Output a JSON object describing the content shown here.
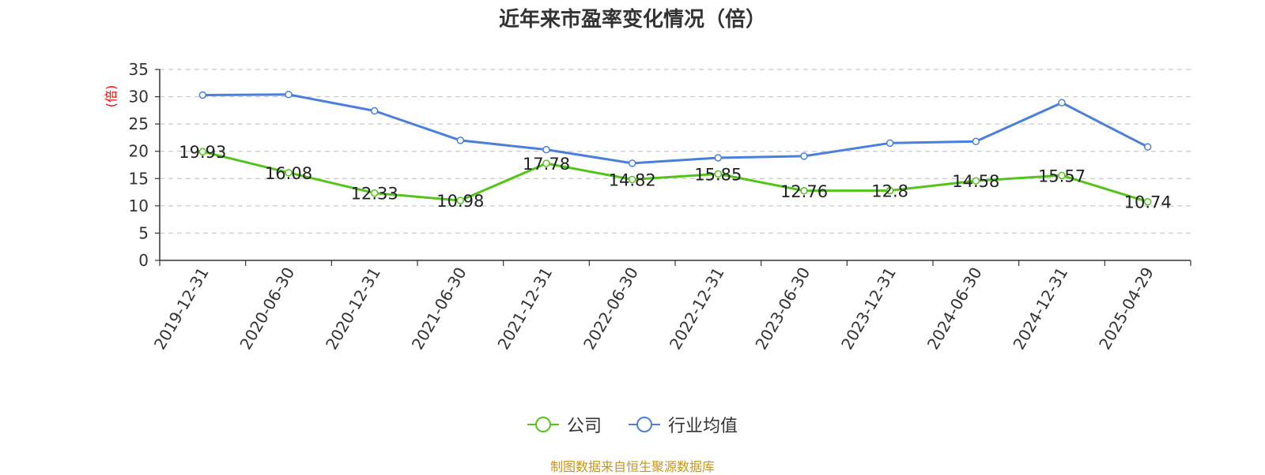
{
  "source_note": "制图数据来自恒生聚源数据库",
  "colors": {
    "company": "#52c41a",
    "industry": "#4a7fdb",
    "ylabel": "#ff0000",
    "source": "#c8951b"
  },
  "chart_data": {
    "type": "line",
    "title": "近年来市盈率变化情况（倍）",
    "xlabel": "",
    "ylabel": "(倍)",
    "ylim": [
      0,
      35
    ],
    "yticks": [
      0,
      5,
      10,
      15,
      20,
      25,
      30,
      35
    ],
    "grid": true,
    "legend_position": "bottom",
    "categories": [
      "2019-12-31",
      "2020-06-30",
      "2020-12-31",
      "2021-06-30",
      "2021-12-31",
      "2022-06-30",
      "2022-12-31",
      "2023-06-30",
      "2023-12-31",
      "2024-06-30",
      "2024-12-31",
      "2025-04-29"
    ],
    "series": [
      {
        "name": "公司",
        "values": [
          19.93,
          16.08,
          12.33,
          10.98,
          17.78,
          14.82,
          15.85,
          12.76,
          12.8,
          14.58,
          15.57,
          10.74
        ],
        "labels": [
          "19.93",
          "16.08",
          "12.33",
          "10.98",
          "17.78",
          "14.82",
          "15.85",
          "12.76",
          "12.8",
          "14.58",
          "15.57",
          "10.74"
        ]
      },
      {
        "name": "行业均值",
        "values": [
          30.3,
          30.4,
          27.4,
          22.0,
          20.3,
          17.8,
          18.8,
          19.1,
          21.5,
          21.8,
          28.9,
          20.8
        ]
      }
    ]
  }
}
